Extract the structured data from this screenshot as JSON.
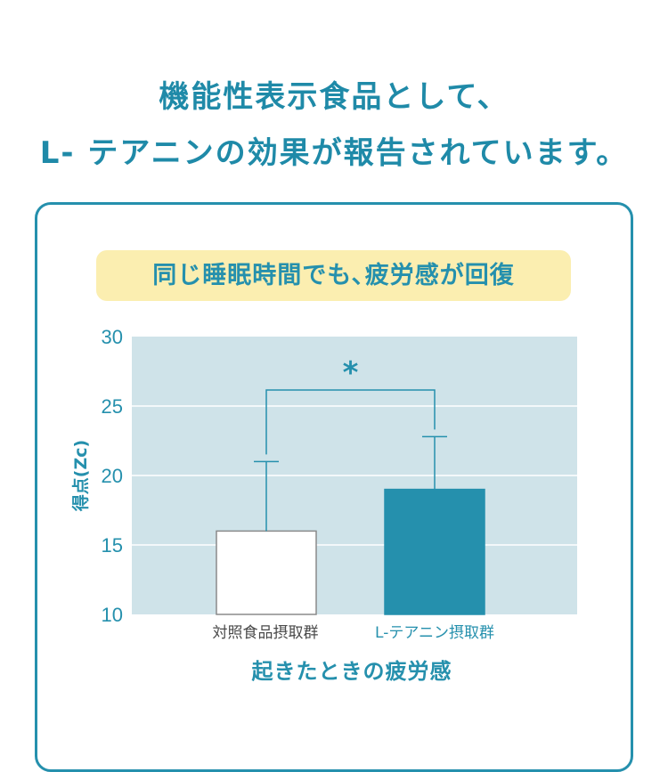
{
  "headline": {
    "line1": "機能性表示食品として、",
    "line2": "L- テアニンの効果が報告されています。"
  },
  "banner": "同じ睡眠時間でも､疲労感が回復",
  "colors": {
    "accent": "#2590ad",
    "plot_background": "#cfe3e9",
    "bar_control": "#ffffff",
    "bar_theanine": "#2590ad",
    "banner_background": "#fbeeb0"
  },
  "chart_data": {
    "type": "bar",
    "categories": [
      "対照食品摂取群",
      "L-テアニン摂取群"
    ],
    "values": [
      16,
      19
    ],
    "error_upper": [
      21,
      22.8
    ],
    "ylim": [
      10,
      30
    ],
    "yticks": [
      "10",
      "15",
      "20",
      "25",
      "30"
    ],
    "ylabel": "得点(Zc)",
    "xlabel": "起きたときの疲労感",
    "significance_marker": "*",
    "grid": true
  }
}
